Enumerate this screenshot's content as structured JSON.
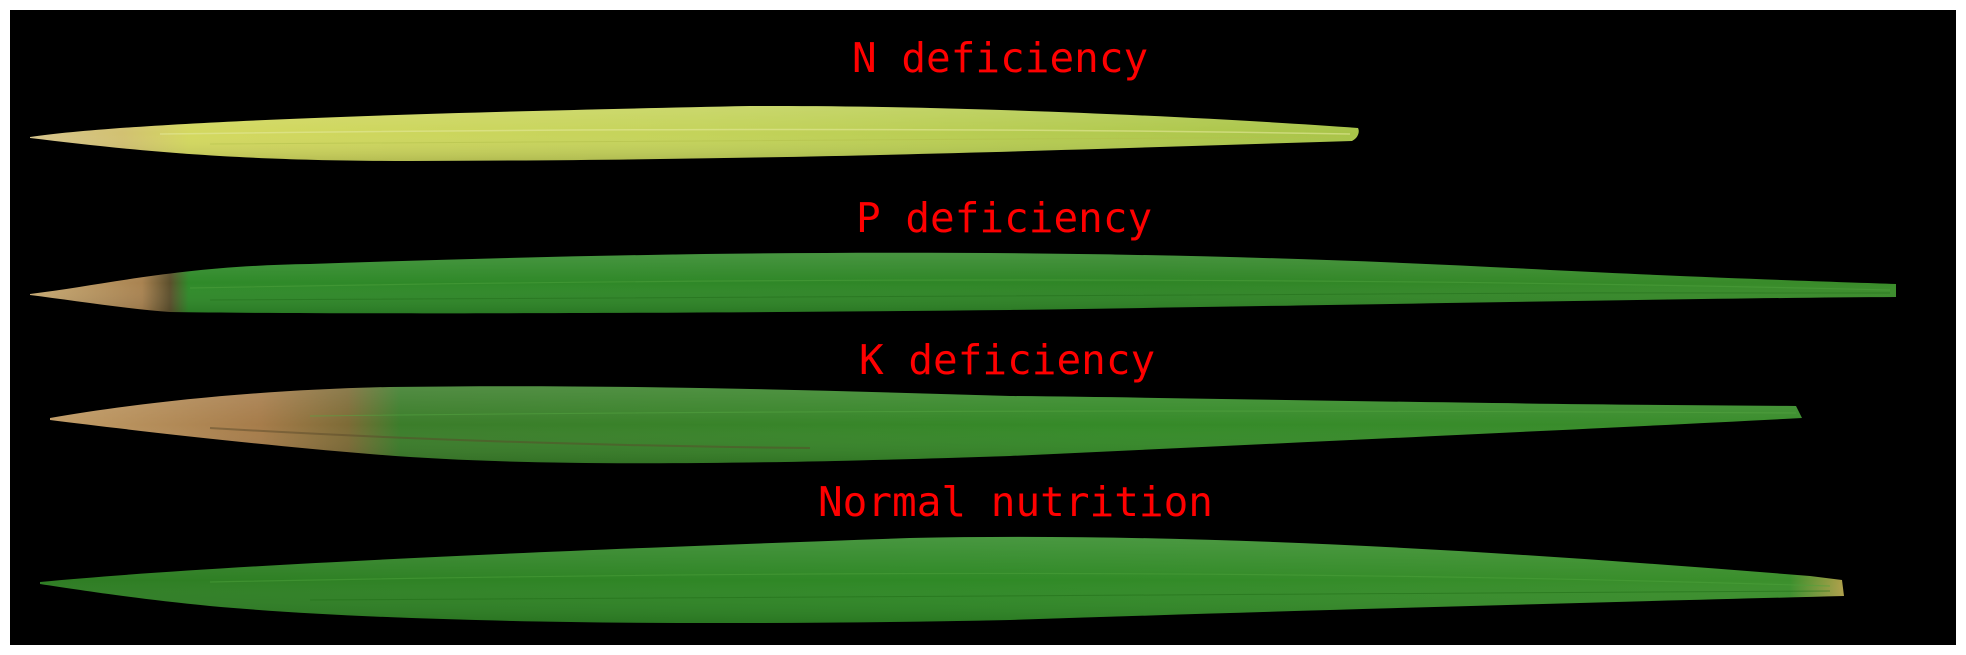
{
  "labels": {
    "n": "N deficiency",
    "p": "P deficiency",
    "k": "K deficiency",
    "normal": "Normal nutrition"
  },
  "colors": {
    "background": "#000000",
    "label_text": "#ff0000",
    "leaf_n_yellow": "#c9d35a",
    "leaf_green": "#2f8a27",
    "necrotic_tip": "#a07a45"
  }
}
